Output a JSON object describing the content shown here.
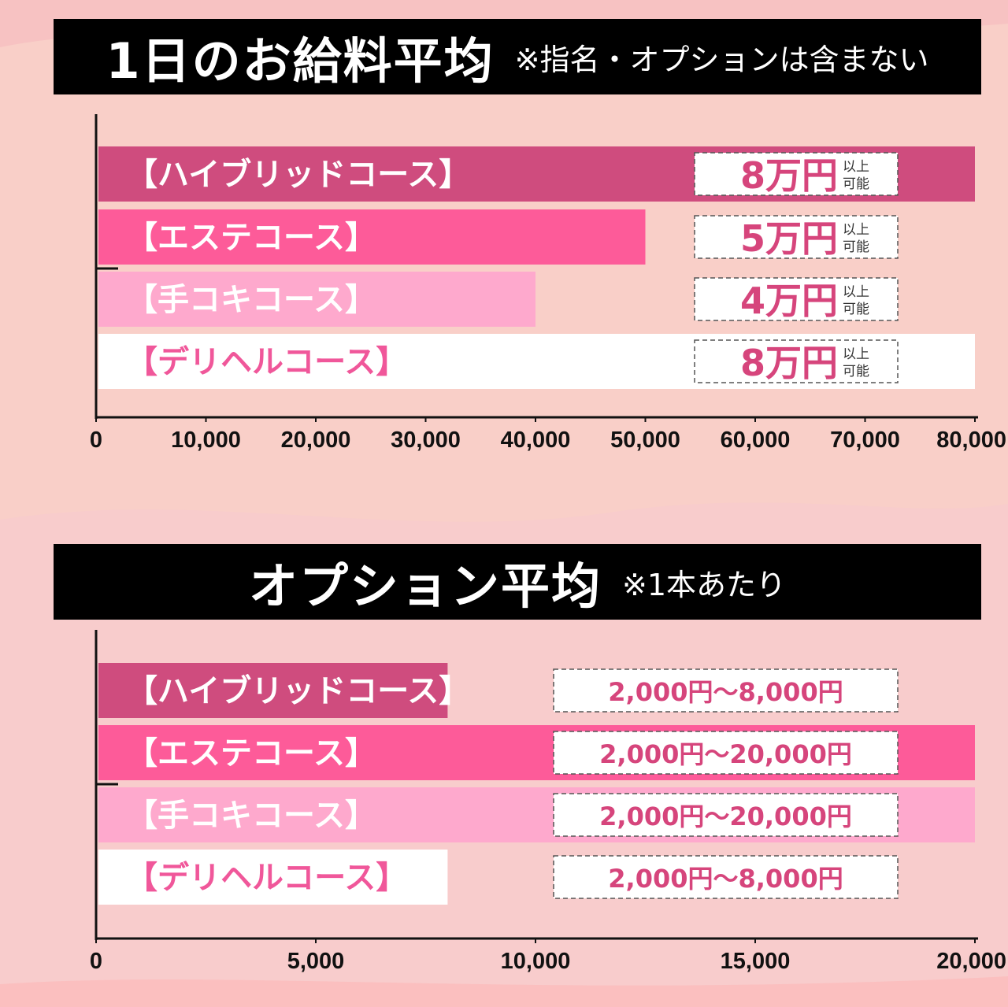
{
  "colors": {
    "background": "#f9cfc8",
    "title_bar": "#000000",
    "label_pink": "#d6457c",
    "bar_colors": [
      "#cf4c7e",
      "#fd5b99",
      "#fea9cd",
      "#ffffff"
    ],
    "label_colors": [
      "#ffffff",
      "#ffffff",
      "#ffffff",
      "#f0579a"
    ]
  },
  "section1": {
    "title": "1日のお給料平均",
    "note": "※指名・オプションは含まない",
    "chart_data": {
      "type": "bar",
      "orientation": "horizontal",
      "categories": [
        "【ハイブリッドコース】",
        "【エステコース】",
        "【手コキコース】",
        "【デリヘルコース】"
      ],
      "values": [
        80000,
        50000,
        40000,
        80000
      ],
      "value_labels": [
        {
          "amount": "8万円",
          "suffix_top": "以上",
          "suffix_bottom": "可能"
        },
        {
          "amount": "5万円",
          "suffix_top": "以上",
          "suffix_bottom": "可能"
        },
        {
          "amount": "4万円",
          "suffix_top": "以上",
          "suffix_bottom": "可能"
        },
        {
          "amount": "8万円",
          "suffix_top": "以上",
          "suffix_bottom": "可能"
        }
      ],
      "xlim": [
        0,
        80000
      ],
      "xticks": [
        0,
        10000,
        20000,
        30000,
        40000,
        50000,
        60000,
        70000,
        80000
      ],
      "xtick_labels": [
        "0",
        "10,000",
        "20,000",
        "30,000",
        "40,000",
        "50,000",
        "60,000",
        "70,000",
        "80,000"
      ],
      "grid": false
    }
  },
  "section2": {
    "title": "オプション平均",
    "note": "※1本あたり",
    "chart_data": {
      "type": "bar",
      "orientation": "horizontal",
      "categories": [
        "【ハイブリッドコース】",
        "【エステコース】",
        "【手コキコース】",
        "【デリヘルコース】"
      ],
      "values": [
        8000,
        20000,
        20000,
        8000
      ],
      "value_labels": [
        "2,000円〜8,000円",
        "2,000円〜20,000円",
        "2,000円〜20,000円",
        "2,000円〜8,000円"
      ],
      "xlim": [
        0,
        20000
      ],
      "xticks": [
        0,
        5000,
        10000,
        15000,
        20000
      ],
      "xtick_labels": [
        "0",
        "5,000",
        "10,000",
        "15,000",
        "20,000"
      ],
      "grid": false
    }
  }
}
